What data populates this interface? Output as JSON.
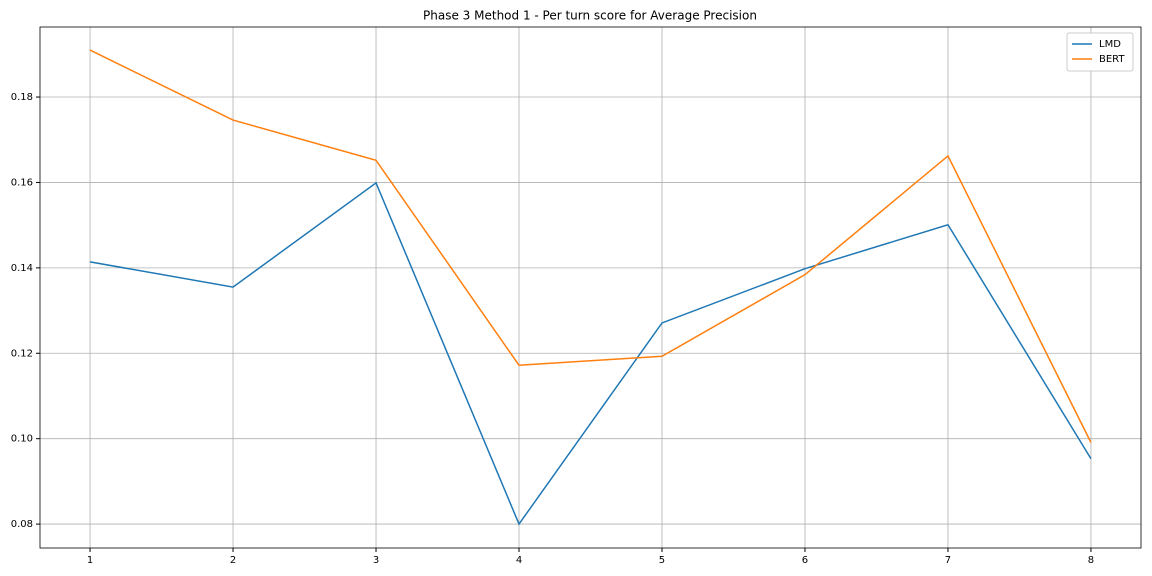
{
  "chart_data": {
    "type": "line",
    "title": "Phase 3 Method 1 - Per turn score for Average Precision",
    "x": [
      1,
      2,
      3,
      4,
      5,
      6,
      7,
      8
    ],
    "series": [
      {
        "name": "LMD",
        "color": "#1f77b4",
        "values": [
          0.1414,
          0.1355,
          0.1599,
          0.08,
          0.1271,
          0.1398,
          0.1501,
          0.0953
        ]
      },
      {
        "name": "BERT",
        "color": "#ff7f0e",
        "values": [
          0.191,
          0.1746,
          0.1652,
          0.1172,
          0.1193,
          0.1384,
          0.1662,
          0.0991
        ]
      }
    ],
    "xlim": [
      0.65,
      8.35
    ],
    "xticks": [
      1,
      2,
      3,
      4,
      5,
      6,
      7,
      8
    ],
    "ylim": [
      0.0744,
      0.1964
    ],
    "yticks": [
      0.08,
      {
        "value": 0.1,
        "label": "0.10"
      },
      0.12,
      0.14,
      0.16,
      0.18
    ],
    "grid": true,
    "legend": "upper-right"
  }
}
